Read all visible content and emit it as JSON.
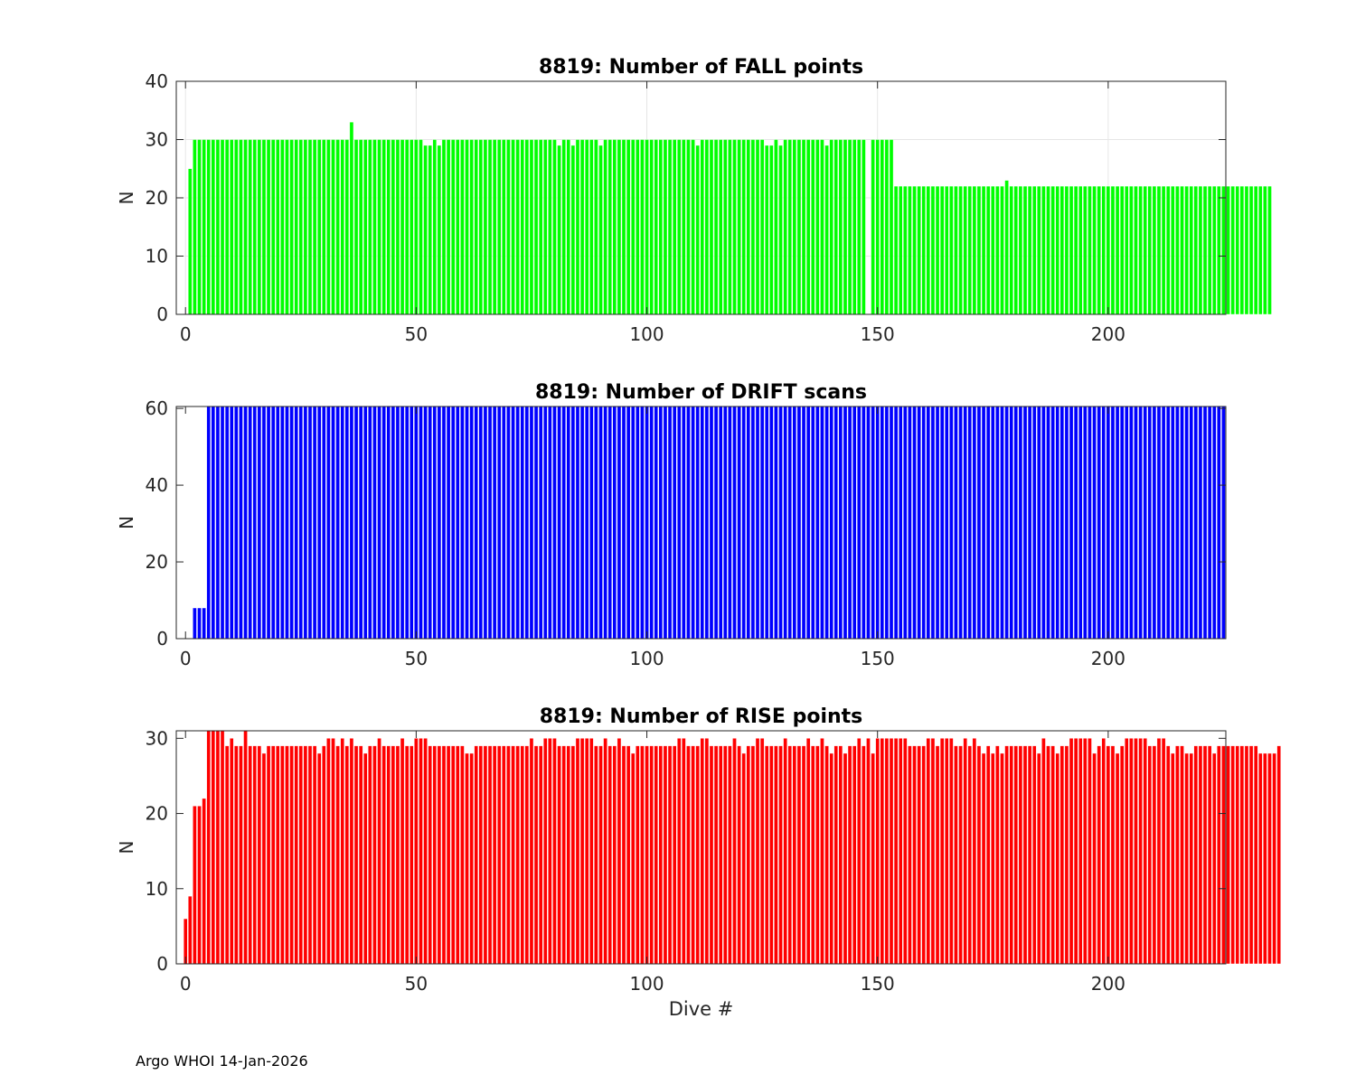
{
  "footer": "Argo WHOI 14-Jan-2026",
  "xlabel": "Dive #",
  "colors": {
    "fall": "#00ff00",
    "drift": "#0000ff",
    "rise": "#ff0000",
    "edge": "#ffffff",
    "grid": "#e6e6e6",
    "axis": "#262626"
  },
  "chart_data": [
    {
      "type": "bar",
      "title": "8819: Number of FALL points",
      "ylabel": "N",
      "xlabel": "",
      "xlim": [
        -2,
        225.5
      ],
      "ylim": [
        0,
        40
      ],
      "xticks": [
        0,
        50,
        100,
        150,
        200
      ],
      "yticks": [
        0,
        10,
        20,
        30,
        40
      ],
      "grid": true,
      "color": "fall",
      "x_start": 1,
      "values": [
        25,
        30,
        30,
        30,
        30,
        30,
        30,
        30,
        30,
        30,
        30,
        30,
        30,
        30,
        30,
        30,
        30,
        30,
        30,
        30,
        30,
        30,
        30,
        30,
        30,
        30,
        30,
        30,
        30,
        30,
        30,
        30,
        30,
        30,
        30,
        33,
        30,
        30,
        30,
        30,
        30,
        30,
        30,
        30,
        30,
        30,
        30,
        30,
        30,
        30,
        30,
        29,
        29,
        30,
        29,
        30,
        30,
        30,
        30,
        30,
        30,
        30,
        30,
        30,
        30,
        30,
        30,
        30,
        30,
        30,
        30,
        30,
        30,
        30,
        30,
        30,
        30,
        30,
        30,
        30,
        29,
        30,
        30,
        29,
        30,
        30,
        30,
        30,
        30,
        29,
        30,
        30,
        30,
        30,
        30,
        30,
        30,
        30,
        30,
        30,
        30,
        30,
        30,
        30,
        30,
        30,
        30,
        30,
        30,
        30,
        29,
        30,
        30,
        30,
        30,
        30,
        30,
        30,
        30,
        30,
        30,
        30,
        30,
        30,
        30,
        29,
        29,
        30,
        29,
        30,
        30,
        30,
        30,
        30,
        30,
        30,
        30,
        30,
        29,
        30,
        30,
        30,
        30,
        30,
        30,
        30,
        30,
        0,
        30,
        30,
        30,
        30,
        30,
        22,
        22,
        22,
        22,
        22,
        22,
        22,
        22,
        22,
        22,
        22,
        22,
        22,
        22,
        22,
        22,
        22,
        22,
        22,
        22,
        22,
        22,
        22,
        22,
        23,
        22,
        22,
        22,
        22,
        22,
        22,
        22,
        22,
        22,
        22,
        22,
        22,
        22,
        22,
        22,
        22,
        22,
        22,
        22,
        22,
        22,
        22,
        22,
        22,
        22,
        22,
        22,
        22,
        22,
        22,
        22,
        22,
        22,
        22,
        22,
        22,
        22,
        22,
        22,
        22,
        22,
        22,
        22,
        22,
        22,
        22,
        22,
        22,
        22,
        22,
        22,
        22,
        22,
        22,
        22,
        22,
        22
      ]
    },
    {
      "type": "bar",
      "title": "8819: Number of DRIFT scans",
      "ylabel": "N",
      "xlabel": "",
      "xlim": [
        -2,
        225.5
      ],
      "ylim": [
        0,
        60.5
      ],
      "xticks": [
        0,
        50,
        100,
        150,
        200
      ],
      "yticks": [
        0,
        20,
        40,
        60
      ],
      "grid": false,
      "color": "drift",
      "x_start": 1,
      "values": [
        0,
        8,
        8,
        8,
        61,
        61,
        61,
        61,
        61,
        61,
        61,
        61,
        61,
        61,
        61,
        61,
        61,
        61,
        61,
        61,
        61,
        61,
        61,
        61,
        61,
        61,
        61,
        61,
        61,
        61,
        61,
        61,
        61,
        61,
        61,
        61,
        61,
        61,
        61,
        61,
        61,
        61,
        61,
        61,
        61,
        61,
        61,
        61,
        61,
        61,
        61,
        61,
        61,
        61,
        61,
        61,
        61,
        61,
        61,
        61,
        61,
        61,
        61,
        61,
        61,
        61,
        61,
        61,
        61,
        61,
        61,
        61,
        61,
        61,
        61,
        61,
        61,
        61,
        61,
        61,
        61,
        61,
        61,
        61,
        61,
        61,
        61,
        61,
        61,
        61,
        61,
        61,
        61,
        61,
        61,
        61,
        61,
        61,
        61,
        61,
        61,
        61,
        61,
        61,
        61,
        61,
        61,
        61,
        61,
        61,
        61,
        61,
        61,
        61,
        61,
        61,
        61,
        61,
        61,
        61,
        61,
        61,
        61,
        61,
        61,
        61,
        61,
        61,
        61,
        61,
        61,
        61,
        61,
        61,
        61,
        61,
        61,
        61,
        61,
        61,
        61,
        61,
        61,
        61,
        61,
        61,
        61,
        61,
        61,
        61,
        61,
        61,
        61,
        61,
        61,
        61,
        61,
        61,
        61,
        61,
        61,
        61,
        61,
        61,
        61,
        61,
        61,
        61,
        61,
        61,
        61,
        61,
        61,
        61,
        61,
        61,
        61,
        61,
        61,
        61,
        61,
        61,
        61,
        61,
        61,
        61,
        61,
        61,
        61,
        61,
        61,
        61,
        61,
        61,
        61,
        61,
        61,
        61,
        61,
        61,
        61,
        61,
        61,
        61,
        61,
        61,
        61,
        61,
        61,
        61,
        61,
        61,
        61,
        61,
        61,
        61,
        61,
        61,
        61,
        61,
        61,
        61,
        61,
        61,
        61
      ]
    },
    {
      "type": "bar",
      "title": "8819: Number of RISE points",
      "ylabel": "N",
      "xlabel": "Dive #",
      "xlim": [
        -2,
        225.5
      ],
      "ylim": [
        0,
        31
      ],
      "xticks": [
        0,
        50,
        100,
        150,
        200
      ],
      "yticks": [
        0,
        10,
        20,
        30
      ],
      "grid": false,
      "color": "rise",
      "x_start": 0,
      "values": [
        6,
        9,
        21,
        21,
        22,
        31,
        31,
        31,
        31,
        29,
        30,
        29,
        29,
        31,
        29,
        29,
        29,
        28,
        29,
        29,
        29,
        29,
        29,
        29,
        29,
        29,
        29,
        29,
        29,
        28,
        29,
        30,
        30,
        29,
        30,
        29,
        30,
        29,
        29,
        28,
        29,
        29,
        30,
        29,
        29,
        29,
        29,
        30,
        29,
        29,
        30,
        30,
        30,
        29,
        29,
        29,
        29,
        29,
        29,
        29,
        29,
        28,
        28,
        29,
        29,
        29,
        29,
        29,
        29,
        29,
        29,
        29,
        29,
        29,
        29,
        30,
        29,
        29,
        30,
        30,
        30,
        29,
        29,
        29,
        29,
        30,
        30,
        30,
        30,
        29,
        29,
        30,
        29,
        29,
        30,
        29,
        29,
        28,
        29,
        29,
        29,
        29,
        29,
        29,
        29,
        29,
        29,
        30,
        30,
        29,
        29,
        29,
        30,
        30,
        29,
        29,
        29,
        29,
        29,
        30,
        29,
        28,
        29,
        29,
        30,
        30,
        29,
        29,
        29,
        29,
        30,
        29,
        29,
        29,
        29,
        30,
        29,
        29,
        30,
        29,
        28,
        29,
        29,
        28,
        29,
        29,
        30,
        29,
        30,
        28,
        30,
        30,
        30,
        30,
        30,
        30,
        30,
        29,
        29,
        29,
        29,
        30,
        30,
        29,
        30,
        30,
        30,
        29,
        29,
        30,
        29,
        30,
        29,
        28,
        29,
        28,
        29,
        28,
        29,
        29,
        29,
        29,
        29,
        29,
        29,
        28,
        30,
        29,
        29,
        28,
        29,
        29,
        30,
        30,
        30,
        30,
        30,
        28,
        29,
        30,
        29,
        29,
        28,
        29,
        30,
        30,
        30,
        30,
        30,
        29,
        29,
        30,
        30,
        29,
        28,
        29,
        29,
        28,
        28,
        29,
        29,
        29,
        29,
        28,
        29,
        29,
        29,
        29,
        29,
        29,
        29,
        29,
        29,
        28,
        28,
        28,
        28,
        29
      ]
    }
  ]
}
